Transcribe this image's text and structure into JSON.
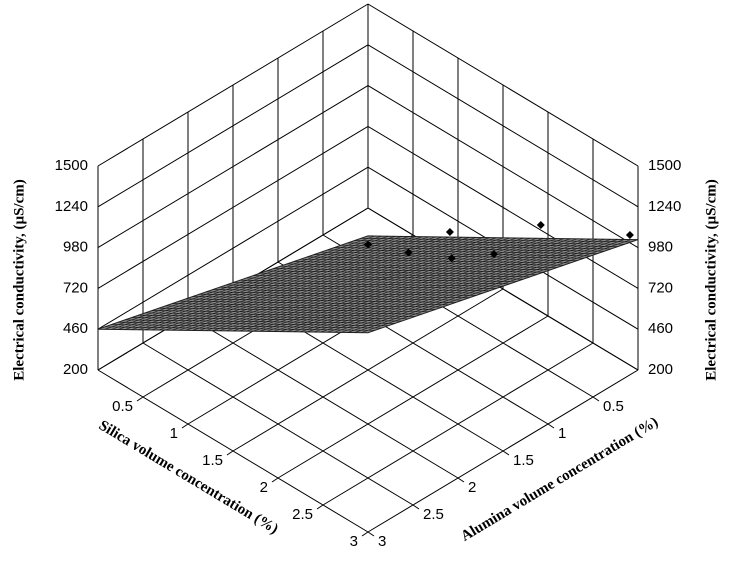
{
  "chart_data": {
    "type": "scatter3d",
    "xlabel": "Silica volume concentration (%)",
    "ylabel": "Alumina volume concentration (%)",
    "zlabel": "Electrical conductivity, (µS/cm)",
    "xlim": [
      0,
      3
    ],
    "ylim": [
      0,
      3
    ],
    "zlim": [
      200,
      1500
    ],
    "xticks": [
      0.5,
      1,
      1.5,
      2,
      2.5,
      3
    ],
    "yticks": [
      0.5,
      1,
      1.5,
      2,
      2.5,
      3
    ],
    "zticks": [
      200,
      460,
      720,
      980,
      1240,
      1500
    ],
    "grid": true,
    "points": {
      "color": "#000000",
      "x": [
        1.5,
        1.8,
        2.13,
        2.02,
        2.29,
        2.57,
        2.94
      ],
      "y": [
        1.5,
        1.35,
        1.22,
        1.09,
        0.89,
        0.65,
        0.03
      ],
      "z": [
        1000,
        1000,
        1200,
        950,
        1000,
        1200,
        1050
      ]
    },
    "surface": {
      "color": "#8a8a8a",
      "x": [
        0,
        3
      ],
      "y": [
        0,
        3
      ],
      "z": [
        [
          22,
          460
        ],
        [
          1031,
          1470
        ]
      ]
    }
  }
}
